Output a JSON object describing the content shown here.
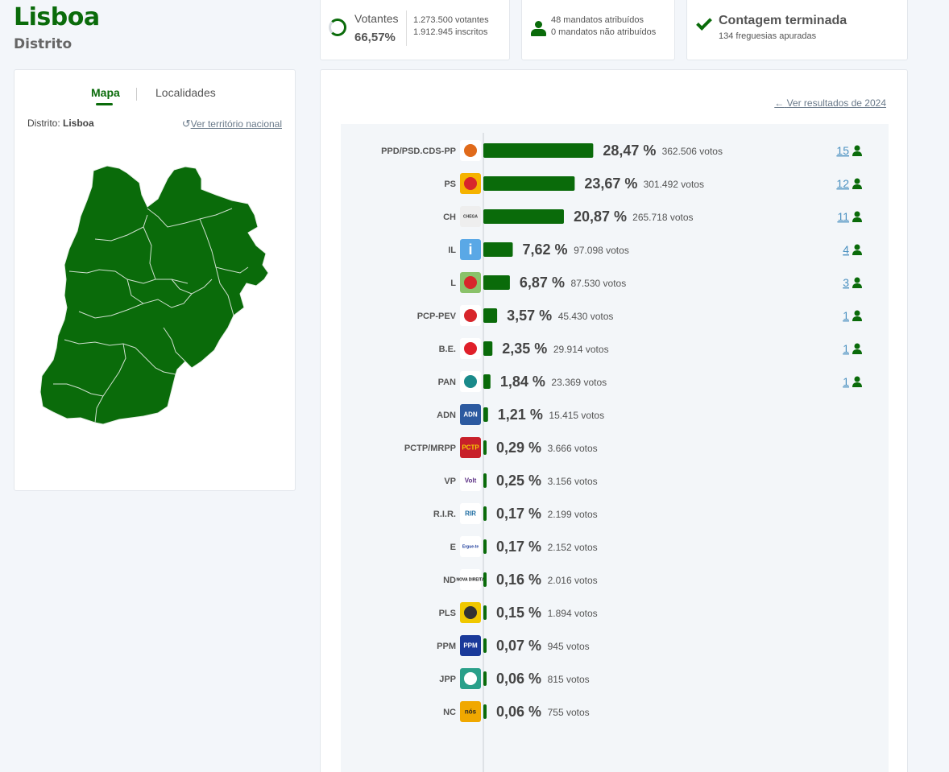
{
  "header": {
    "title": "Lisboa",
    "subtitle": "Distrito"
  },
  "stats": {
    "votantes_label": "Votantes",
    "votantes_pct": "66,57%",
    "votantes_count": "1.273.500 votantes",
    "inscritos_count": "1.912.945 inscritos",
    "mandatos_atribuidos": "48 mandatos atribuídos",
    "mandatos_nao_atribuidos": "0 mandatos não atribuídos",
    "status_title": "Contagem terminada",
    "status_sub": "134 freguesias apuradas"
  },
  "map_panel": {
    "tabs": [
      "Mapa",
      "Localidades"
    ],
    "active_tab": "Mapa",
    "district_label": "Distrito:",
    "district_value": "Lisboa",
    "national_link": "Ver território nacional",
    "map_color": "#0a6b0a"
  },
  "results": {
    "previous_link": "Ver resultados de 2024",
    "bar_color": "#0a6b0a"
  },
  "chart_data": {
    "type": "bar",
    "orientation": "horizontal",
    "categories": [
      "PPD/PSD.CDS-PP",
      "PS",
      "CH",
      "IL",
      "L",
      "PCP-PEV",
      "B.E.",
      "PAN",
      "ADN",
      "PCTP/MRPP",
      "VP",
      "R.I.R.",
      "E",
      "ND",
      "PLS",
      "PPM",
      "JPP",
      "NC"
    ],
    "values": [
      28.47,
      23.67,
      20.87,
      7.62,
      6.87,
      3.57,
      2.35,
      1.84,
      1.21,
      0.29,
      0.25,
      0.17,
      0.17,
      0.16,
      0.15,
      0.07,
      0.06,
      0.06
    ],
    "pct_labels": [
      "28,47 %",
      "23,67 %",
      "20,87 %",
      "7,62 %",
      "6,87 %",
      "3,57 %",
      "2,35 %",
      "1,84 %",
      "1,21 %",
      "0,29 %",
      "0,25 %",
      "0,17 %",
      "0,17 %",
      "0,16 %",
      "0,15 %",
      "0,07 %",
      "0,06 %",
      "0,06 %"
    ],
    "votes_labels": [
      "362.506 votos",
      "301.492 votos",
      "265.718 votos",
      "97.098 votos",
      "87.530 votos",
      "45.430 votos",
      "29.914 votos",
      "23.369 votos",
      "15.415 votos",
      "3.666 votos",
      "3.156 votos",
      "2.199 votos",
      "2.152 votos",
      "2.016 votos",
      "1.894 votos",
      "945 votos",
      "815 votos",
      "755 votos"
    ],
    "seats": [
      "15",
      "12",
      "11",
      "4",
      "3",
      "1",
      "1",
      "1",
      "",
      "",
      "",
      "",
      "",
      "",
      "",
      "",
      "",
      ""
    ],
    "logos": [
      "psd-cds-logo",
      "ps-fist-rose-logo",
      "chega-logo",
      "il-logo",
      "livre-poppy-logo",
      "pcp-pev-logo",
      "be-star-logo",
      "pan-tree-logo",
      "adn-logo",
      "pctp-mrpp-logo",
      "volt-logo",
      "rir-logo",
      "ergue-te-logo",
      "nova-direita-logo",
      "pls-logo",
      "ppm-logo",
      "jpp-logo",
      "nos-cidadaos-logo"
    ],
    "logo_texts": [
      "",
      "",
      "CHEGA",
      "i",
      "",
      "",
      "",
      "",
      "ADN",
      "PCTP",
      "Volt",
      "RIR",
      "Ergue-te",
      "NOVA DIREITA",
      "",
      "PPM",
      "",
      "nós"
    ]
  }
}
